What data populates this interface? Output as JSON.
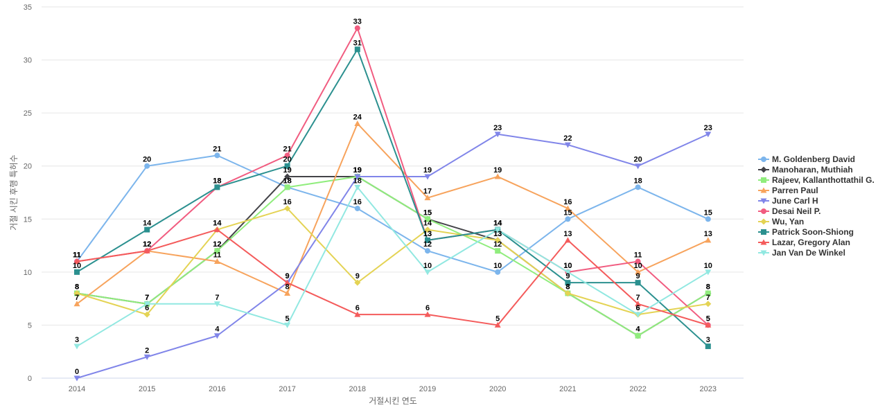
{
  "chart_data": {
    "type": "line",
    "title": "",
    "xlabel": "거절시킨 연도",
    "ylabel": "거절 시킨 후행 특허수",
    "ylim": [
      0,
      35
    ],
    "yticks": [
      0,
      5,
      10,
      15,
      20,
      25,
      30,
      35
    ],
    "grid": true,
    "legend_position": "right",
    "categories": [
      "2014",
      "2015",
      "2016",
      "2017",
      "2018",
      "2019",
      "2020",
      "2021",
      "2022",
      "2023"
    ],
    "series": [
      {
        "name": "M. Goldenberg David",
        "color": "#7cb5ec",
        "marker": "circle",
        "values": [
          11,
          20,
          21,
          18,
          16,
          12,
          10,
          15,
          18,
          15
        ]
      },
      {
        "name": "Manoharan, Muthiah",
        "color": "#434348",
        "marker": "diamond",
        "values": [
          8,
          7,
          12,
          19,
          19,
          15,
          13,
          8,
          4,
          8
        ]
      },
      {
        "name": "Rajeev, Kallanthottathil G.",
        "color": "#90ed7d",
        "marker": "square",
        "values": [
          8,
          7,
          12,
          18,
          19,
          15,
          12,
          8,
          4,
          8
        ]
      },
      {
        "name": "Parren Paul",
        "color": "#f7a35c",
        "marker": "triangle",
        "values": [
          7,
          12,
          11,
          8,
          24,
          17,
          19,
          16,
          10,
          13
        ]
      },
      {
        "name": "June Carl H",
        "color": "#8085e9",
        "marker": "triangle-down",
        "values": [
          0,
          2,
          4,
          9,
          19,
          19,
          23,
          22,
          20,
          23
        ]
      },
      {
        "name": "Desai Neil P.",
        "color": "#f15c80",
        "marker": "circle",
        "values": [
          11,
          12,
          18,
          21,
          33,
          13,
          14,
          10,
          11,
          5
        ]
      },
      {
        "name": "Wu, Yan",
        "color": "#e4d354",
        "marker": "diamond",
        "values": [
          8,
          6,
          14,
          16,
          9,
          14,
          13,
          8,
          6,
          7
        ]
      },
      {
        "name": "Patrick Soon-Shiong",
        "color": "#2b908f",
        "marker": "square",
        "values": [
          10,
          14,
          18,
          20,
          31,
          13,
          14,
          9,
          9,
          3
        ]
      },
      {
        "name": "Lazar, Gregory Alan",
        "color": "#f45b5b",
        "marker": "triangle",
        "values": [
          11,
          12,
          14,
          9,
          6,
          6,
          5,
          13,
          7,
          5
        ]
      },
      {
        "name": "Jan Van De Winkel",
        "color": "#91e8e1",
        "marker": "triangle-down",
        "values": [
          3,
          7,
          7,
          5,
          18,
          10,
          14,
          10,
          6,
          10
        ]
      }
    ]
  }
}
